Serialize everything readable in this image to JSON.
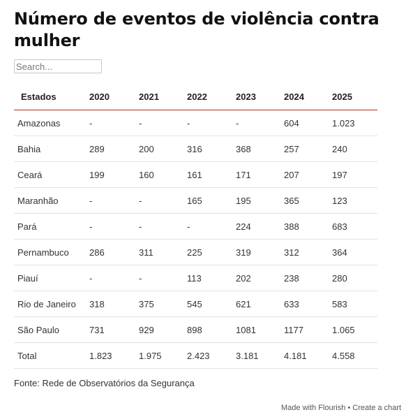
{
  "title": "Número de eventos de violência contra mulher",
  "search": {
    "placeholder": "Search..."
  },
  "table": {
    "headers": [
      "Estados",
      "2020",
      "2021",
      "2022",
      "2023",
      "2024",
      "2025"
    ],
    "rows": [
      [
        "Amazonas",
        "-",
        "-",
        "-",
        "-",
        "604",
        "1.023"
      ],
      [
        "Bahia",
        "289",
        "200",
        "316",
        "368",
        "257",
        "240"
      ],
      [
        "Ceará",
        "199",
        "160",
        "161",
        "171",
        "207",
        "197"
      ],
      [
        "Maranhão",
        "-",
        "-",
        "165",
        "195",
        "365",
        "123"
      ],
      [
        "Pará",
        "-",
        "-",
        "-",
        "224",
        "388",
        "683"
      ],
      [
        "Pernambuco",
        "286",
        "311",
        "225",
        "319",
        "312",
        "364"
      ],
      [
        "Piauí",
        "-",
        "-",
        "113",
        "202",
        "238",
        "280"
      ],
      [
        "Rio de Janeiro",
        "318",
        "375",
        "545",
        "621",
        "633",
        "583"
      ],
      [
        "São Paulo",
        "731",
        "929",
        "898",
        "1081",
        "1177",
        "1.065"
      ],
      [
        "Total",
        "1.823",
        "1.975",
        "2.423",
        "3.181",
        "4.181",
        "4.558"
      ]
    ]
  },
  "footer": {
    "source": "Fonte: Rede de Observatórios da Segurança"
  },
  "credit": {
    "made_with": "Made with Flourish",
    "separator": " • ",
    "create": "Create a chart"
  },
  "colors": {
    "header_rule": "#b0301f",
    "row_rule": "#e2e2e2"
  }
}
